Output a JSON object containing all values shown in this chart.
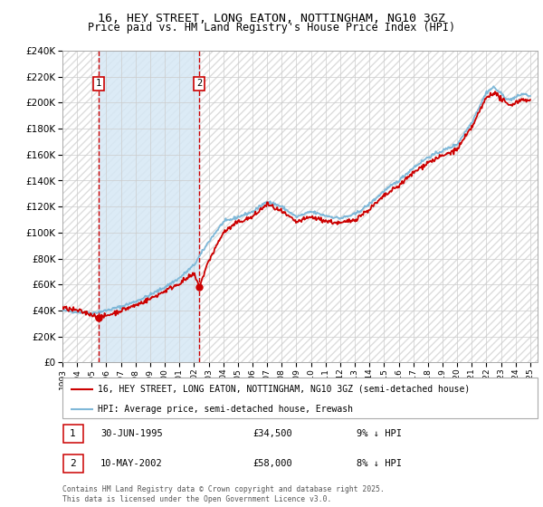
{
  "title": "16, HEY STREET, LONG EATON, NOTTINGHAM, NG10 3GZ",
  "subtitle": "Price paid vs. HM Land Registry's House Price Index (HPI)",
  "ylim": [
    0,
    240000
  ],
  "yticks": [
    0,
    20000,
    40000,
    60000,
    80000,
    100000,
    120000,
    140000,
    160000,
    180000,
    200000,
    220000,
    240000
  ],
  "xlim_start": 1993.0,
  "xlim_end": 2025.5,
  "sale1_date": 1995.49,
  "sale1_price": 34500,
  "sale2_date": 2002.36,
  "sale2_price": 58000,
  "hpi_color": "#7fb8d8",
  "price_color": "#cc0000",
  "dashed_color": "#cc0000",
  "shade_color": "#d6e8f5",
  "legend_label_price": "16, HEY STREET, LONG EATON, NOTTINGHAM, NG10 3GZ (semi-detached house)",
  "legend_label_hpi": "HPI: Average price, semi-detached house, Erewash",
  "annotation1_date": "30-JUN-1995",
  "annotation1_price": "£34,500",
  "annotation1_hpi": "9% ↓ HPI",
  "annotation2_date": "10-MAY-2002",
  "annotation2_price": "£58,000",
  "annotation2_hpi": "8% ↓ HPI",
  "footer": "Contains HM Land Registry data © Crown copyright and database right 2025.\nThis data is licensed under the Open Government Licence v3.0.",
  "bg_color": "#ffffff"
}
